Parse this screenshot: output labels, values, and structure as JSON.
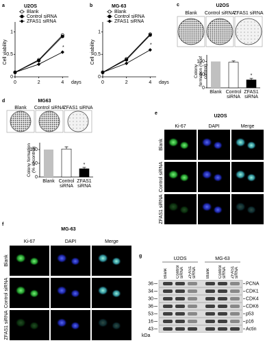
{
  "chart_data": [
    {
      "type": "line",
      "panel": "a",
      "title": "U2OS",
      "y_label": "Cell viability",
      "x_label": "days",
      "x": [
        0,
        2,
        4
      ],
      "xlim": [
        0,
        4.5
      ],
      "xticks": [
        0,
        2,
        4
      ],
      "ylim": [
        0,
        1.1
      ],
      "yticks": [
        0,
        0.5,
        1
      ],
      "series": [
        {
          "name": "Blank",
          "color": "#000000",
          "marker": "open-circle",
          "values": [
            0.1,
            0.38,
            0.93
          ]
        },
        {
          "name": "Control siRNA",
          "color": "#000000",
          "marker": "circle",
          "values": [
            0.1,
            0.36,
            0.9
          ]
        },
        {
          "name": "ZFAS1 siRNA",
          "color": "#000000",
          "marker": "diamond",
          "values": [
            0.1,
            0.28,
            0.55
          ]
        }
      ],
      "annotation": "*"
    },
    {
      "type": "line",
      "panel": "b",
      "title": "MG-63",
      "y_label": "Cell viability",
      "x_label": "days",
      "x": [
        0,
        2,
        4
      ],
      "xlim": [
        0,
        4.5
      ],
      "xticks": [
        0,
        2,
        4
      ],
      "ylim": [
        0,
        1.1
      ],
      "yticks": [
        0,
        0.5,
        1
      ],
      "series": [
        {
          "name": "Blank",
          "color": "#000000",
          "marker": "open-circle",
          "values": [
            0.1,
            0.4,
            0.95
          ]
        },
        {
          "name": "Control siRNA",
          "color": "#000000",
          "marker": "circle",
          "values": [
            0.1,
            0.38,
            0.93
          ]
        },
        {
          "name": "ZFAS1 siRNA",
          "color": "#000000",
          "marker": "diamond",
          "values": [
            0.1,
            0.3,
            0.6
          ]
        }
      ],
      "annotation": "*"
    },
    {
      "type": "bar",
      "panel": "c",
      "title": "U2OS",
      "image_labels": [
        "Blank",
        "Control siRNA",
        "ZFAS1 siRNA"
      ],
      "y_label": "Colony formation (% of control)",
      "categories": [
        "Blank",
        "Control siRNA",
        "ZFAS1 siRNA"
      ],
      "values": [
        100,
        97,
        30
      ],
      "errors": [
        null,
        5,
        6
      ],
      "colors": [
        "#c0c0c0",
        "#ffffff",
        "#000000"
      ],
      "ylim": [
        0,
        125
      ],
      "yticks": [
        0,
        50,
        100
      ],
      "annotation": "*"
    },
    {
      "type": "bar",
      "panel": "d",
      "title": "MG63",
      "image_labels": [
        "Blank",
        "Control siRNA",
        "ZFAS1 siRNA"
      ],
      "y_label": "Colony formation (% of control)",
      "categories": [
        "Blank",
        "Control siRNA",
        "ZFAS1 siRNA"
      ],
      "values": [
        100,
        102,
        30
      ],
      "errors": [
        null,
        8,
        5
      ],
      "colors": [
        "#c0c0c0",
        "#ffffff",
        "#000000"
      ],
      "ylim": [
        0,
        125
      ],
      "yticks": [
        0,
        50,
        100
      ],
      "annotation": "*"
    }
  ],
  "microscopy": [
    {
      "panel": "e",
      "title": "U2OS",
      "columns": [
        "Ki-67",
        "DAPI",
        "Merge"
      ],
      "rows": [
        "Blank",
        "Control siRNA",
        "ZFAS1 siRNA"
      ]
    },
    {
      "panel": "f",
      "title": "MG-63",
      "columns": [
        "Ki-67",
        "DAPI",
        "Merge"
      ],
      "rows": [
        "Blank",
        "Control siRNA",
        "ZFAS1 siRNA"
      ]
    }
  ],
  "blot": {
    "panel": "g",
    "groups": [
      "U2OS",
      "MG-63"
    ],
    "lanes": [
      "Blank",
      "Control siRNA",
      "ZFAS1 siRNA"
    ],
    "proteins": [
      {
        "name": "PCNA",
        "kda": 36
      },
      {
        "name": "CDK1",
        "kda": 34
      },
      {
        "name": "CDK4",
        "kda": 30
      },
      {
        "name": "CDK6",
        "kda": 36
      },
      {
        "name": "p53",
        "kda": 53
      },
      {
        "name": "p16",
        "kda": 16
      },
      {
        "name": "Actin",
        "kda": 43
      }
    ],
    "unit": "kDa"
  }
}
